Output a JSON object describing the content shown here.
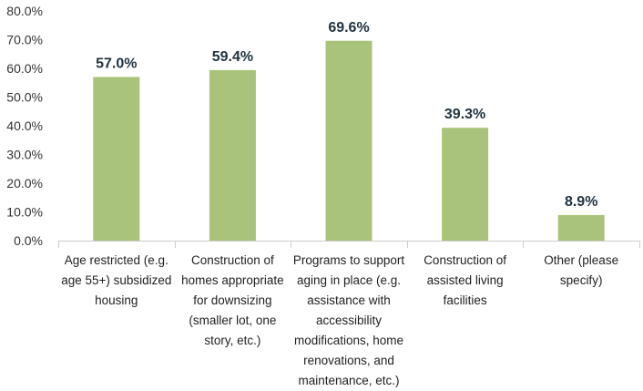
{
  "chart_data": {
    "type": "bar",
    "title": "",
    "xlabel": "",
    "ylabel": "",
    "ylim": [
      0,
      80
    ],
    "ytick_step": 10,
    "ytick_labels": [
      "0.0%",
      "10.0%",
      "20.0%",
      "30.0%",
      "40.0%",
      "50.0%",
      "60.0%",
      "70.0%",
      "80.0%"
    ],
    "categories": [
      "Age restricted (e.g. age 55+) subsidized housing",
      "Construction of homes appropriate for downsizing (smaller lot, one story, etc.)",
      "Programs to support aging in place (e.g. assistance with accessibility modifications, home renovations, and maintenance, etc.)",
      "Construction of assisted living facilities",
      "Other (please specify)"
    ],
    "values": [
      57.0,
      59.4,
      69.6,
      39.3,
      8.9
    ],
    "value_labels": [
      "57.0%",
      "59.4%",
      "69.6%",
      "39.3%",
      "8.9%"
    ],
    "grid": false,
    "legend": "none",
    "colors": {
      "bar": "#a9c47a",
      "axis": "#cccccc",
      "label": "#1f3340",
      "tick": "#333333"
    }
  }
}
